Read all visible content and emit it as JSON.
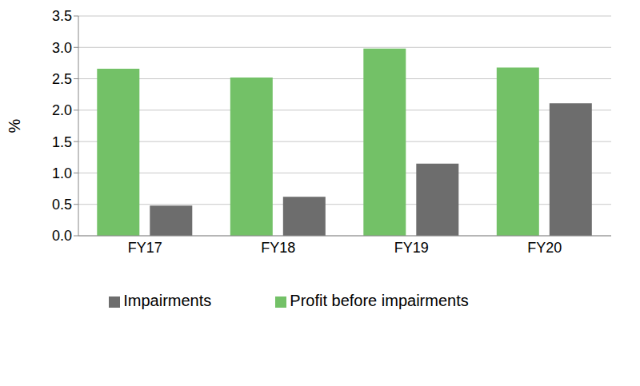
{
  "chart_data": {
    "type": "bar",
    "y_label": "%",
    "categories": [
      "FY17",
      "FY18",
      "FY19",
      "FY20"
    ],
    "series": [
      {
        "name": "Profit before impairments",
        "color": "#73c167",
        "values": [
          2.66,
          2.52,
          2.98,
          2.68
        ]
      },
      {
        "name": "Impairments",
        "color": "#6d6d6d",
        "values": [
          0.48,
          0.62,
          1.15,
          2.11
        ]
      }
    ],
    "ylim": [
      0,
      3.5
    ],
    "yticks": [
      {
        "value": 0,
        "label": "0.0"
      },
      0.5,
      {
        "value": 1,
        "label": "1.0"
      },
      1.5,
      {
        "value": 2,
        "label": "2.0"
      },
      2.5,
      {
        "value": 3,
        "label": "3.0"
      },
      3.5
    ],
    "grid": true,
    "legend": "bottom"
  }
}
